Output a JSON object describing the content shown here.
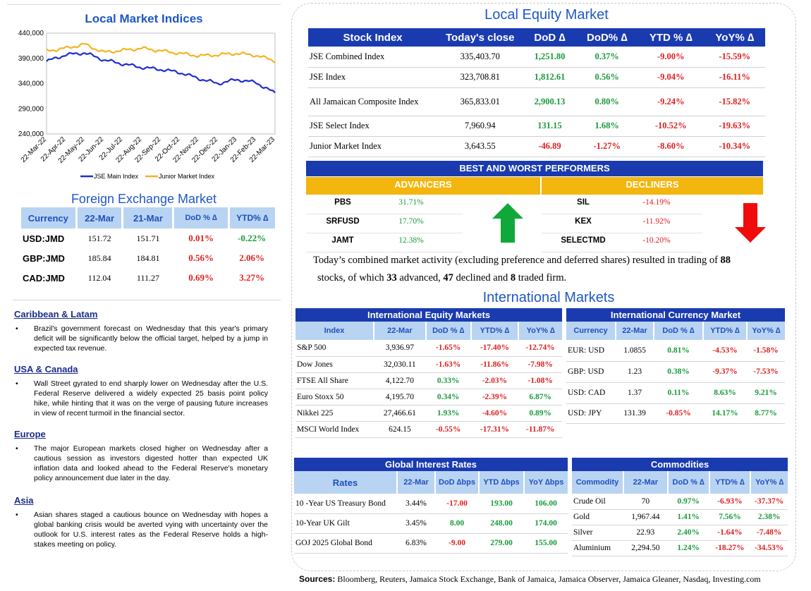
{
  "local_indices": {
    "title": "Local Market Indices",
    "y_ticks": [
      "440,000",
      "390,000",
      "340,000",
      "290,000",
      "240,000"
    ],
    "x_ticks": [
      "22-Mar-22",
      "22-Apr-22",
      "22-May-22",
      "22-Jun-22",
      "22-Jul-22",
      "22-Aug-22",
      "22-Sep-22",
      "22-Oct-22",
      "22-Nov-22",
      "22-Dec-22",
      "22-Jan-23",
      "22-Feb-23",
      "22-Mar-23"
    ],
    "legend": [
      "JSE Main Index",
      "Junior Market Index"
    ],
    "colors": {
      "main": "#1f2ecf",
      "junior": "#f2b51f"
    }
  },
  "chart_data": {
    "type": "line",
    "title": "Local Market Indices",
    "ylim": [
      240000,
      440000
    ],
    "categories": [
      "22-Mar-22",
      "22-Apr-22",
      "22-May-22",
      "22-Jun-22",
      "22-Jul-22",
      "22-Aug-22",
      "22-Sep-22",
      "22-Oct-22",
      "22-Nov-22",
      "22-Dec-22",
      "22-Jan-23",
      "22-Feb-23",
      "22-Mar-23"
    ],
    "series": [
      {
        "name": "JSE Main Index",
        "values": [
          384000,
          397000,
          401000,
          387000,
          379000,
          372000,
          368000,
          362000,
          350000,
          340000,
          348000,
          342000,
          321000
        ]
      },
      {
        "name": "Junior Market Index",
        "values": [
          405000,
          410000,
          418000,
          402000,
          406000,
          410000,
          405000,
          400000,
          395000,
          397000,
          400000,
          396000,
          385000
        ]
      }
    ]
  },
  "fx": {
    "title": "Foreign Exchange Market",
    "headers": [
      "Currency",
      "22-Mar",
      "21-Mar",
      "DoD % ∆",
      "YTD% ∆"
    ],
    "rows": [
      {
        "cur": "USD:JMD",
        "a": "151.72",
        "b": "151.71",
        "dod": "0.01%",
        "ytd": "-0.22%",
        "dod_pos": false,
        "ytd_pos": true
      },
      {
        "cur": "GBP:JMD",
        "a": "185.84",
        "b": "184.81",
        "dod": "0.56%",
        "ytd": "2.06%",
        "dod_pos": false,
        "ytd_pos": false
      },
      {
        "cur": "CAD:JMD",
        "a": "112.04",
        "b": "111.27",
        "dod": "0.69%",
        "ytd": "3.27%",
        "dod_pos": false,
        "ytd_pos": false
      }
    ]
  },
  "news": [
    {
      "head": "Caribbean & Latam",
      "body": "Brazil's government forecast on Wednesday that this year's primary deficit will be significantly below the official target, helped by a jump in expected tax revenue."
    },
    {
      "head": "USA & Canada",
      "body": "Wall Street gyrated to end sharply lower on Wednesday after the U.S. Federal Reserve delivered a widely expected 25 basis point policy hike, while hinting that it was on the verge of pausing future increases in view of recent turmoil in the financial sector."
    },
    {
      "head": "Europe",
      "body": "The major European markets closed higher on Wednesday after a cautious session as investors digested hotter than expected UK inflation data and looked ahead to the Federal Reserve's monetary policy announcement due later in the day."
    },
    {
      "head": "Asia",
      "body": "Asian shares staged a cautious bounce on Wednesday with hopes a global banking crisis would be averted vying with uncertainty over the outlook for U.S. interest rates as the Federal Reserve holds a high-stakes meeting on policy."
    }
  ],
  "equity": {
    "title": "Local Equity Market",
    "headers": [
      "Stock Index",
      "Today's close",
      "DoD ∆",
      "DoD% ∆",
      "YTD % ∆",
      "YoY% ∆"
    ],
    "rows": [
      {
        "name": "JSE Combined Index",
        "close": "335,403.70",
        "dod": "1,251.80",
        "dodp": "0.37%",
        "ytd": "-9.00%",
        "yoy": "-15.59%",
        "up": true
      },
      {
        "name": "JSE Index",
        "close": "323,708.81",
        "dod": "1,812.61",
        "dodp": "0.56%",
        "ytd": "-9.04%",
        "yoy": "-16.11%",
        "up": true
      },
      {
        "name": "All Jamaican Composite Index",
        "close": "365,833.01",
        "dod": "2,900.13",
        "dodp": "0.80%",
        "ytd": "-9.24%",
        "yoy": "-15.82%",
        "up": true
      },
      {
        "name": "JSE Select Index",
        "close": "7,960.94",
        "dod": "131.15",
        "dodp": "1.68%",
        "ytd": "-10.52%",
        "yoy": "-19.63%",
        "up": true
      },
      {
        "name": "Junior Market Index",
        "close": "3,643.55",
        "dod": "-46.89",
        "dodp": "-1.27%",
        "ytd": "-8.60%",
        "yoy": "-10.34%",
        "up": false
      }
    ]
  },
  "performers": {
    "title": "BEST AND WORST PERFORMERS",
    "adv_label": "ADVANCERS",
    "dec_label": "DECLINERS",
    "advancers": [
      {
        "t": "PBS",
        "v": "31.71%"
      },
      {
        "t": "SRFUSD",
        "v": "17.70%"
      },
      {
        "t": "JAMT",
        "v": "12.38%"
      }
    ],
    "decliners": [
      {
        "t": "SIL",
        "v": "-14.19%"
      },
      {
        "t": "KEX",
        "v": "-11.92%"
      },
      {
        "t": "SELECTMD",
        "v": "-10.20%"
      }
    ]
  },
  "summary": {
    "p1": "Today’s combined market activity (excluding preference and deferred shares) resulted in trading of ",
    "n1": "88",
    "p2": "stocks, of which ",
    "n2": "33",
    "p3": " advanced, ",
    "n3": "47",
    "p4": " declined and ",
    "n4": "8",
    "p5": " traded firm."
  },
  "intl": {
    "title": "International Markets",
    "eq_title": "International Equity Markets",
    "eq_headers": [
      "Index",
      "22-Mar",
      "DoD % ∆",
      "YTD% ∆",
      "YoY% ∆"
    ],
    "eq_rows": [
      {
        "n": "S&P 500",
        "v": "3,936.97",
        "d": "-1.65%",
        "y": "-17.40%",
        "yy": "-12.74%",
        "dp": false,
        "yp": false,
        "yyp": false
      },
      {
        "n": "Dow Jones",
        "v": "32,030.11",
        "d": "-1.63%",
        "y": "-11.86%",
        "yy": "-7.98%",
        "dp": false,
        "yp": false,
        "yyp": false
      },
      {
        "n": "FTSE All Share",
        "v": "4,122.70",
        "d": "0.33%",
        "y": "-2.03%",
        "yy": "-1.08%",
        "dp": true,
        "yp": false,
        "yyp": false
      },
      {
        "n": "Euro Stoxx 50",
        "v": "4,195.70",
        "d": "0.34%",
        "y": "-2.39%",
        "yy": "6.87%",
        "dp": true,
        "yp": false,
        "yyp": true
      },
      {
        "n": "Nikkei 225",
        "v": "27,466.61",
        "d": "1.93%",
        "y": "-4.60%",
        "yy": "0.89%",
        "dp": true,
        "yp": false,
        "yyp": true
      },
      {
        "n": "MSCI World Index",
        "v": "624.15",
        "d": "-0.55%",
        "y": "-17.31%",
        "yy": "-11.87%",
        "dp": false,
        "yp": false,
        "yyp": false
      }
    ],
    "cur_title": "International Currency Market",
    "cur_headers": [
      "Currency",
      "22-Mar",
      "DoD % ∆",
      "YTD% ∆",
      "YoY% ∆"
    ],
    "cur_rows": [
      {
        "n": "EUR: USD",
        "v": "1.0855",
        "d": "0.81%",
        "y": "-4.53%",
        "yy": "-1.58%",
        "dp": true,
        "yp": false,
        "yyp": false
      },
      {
        "n": "GBP: USD",
        "v": "1.23",
        "d": "0.38%",
        "y": "-9.37%",
        "yy": "-7.53%",
        "dp": true,
        "yp": false,
        "yyp": false
      },
      {
        "n": "USD: CAD",
        "v": "1.37",
        "d": "0.11%",
        "y": "8.63%",
        "yy": "9.21%",
        "dp": true,
        "yp": true,
        "yyp": true
      },
      {
        "n": "USD: JPY",
        "v": "131.39",
        "d": "-0.85%",
        "y": "14.17%",
        "yy": "8.77%",
        "dp": false,
        "yp": true,
        "yyp": true
      }
    ],
    "rates_title": "Global Interest Rates",
    "rates_headers": [
      "Rates",
      "22-Mar",
      "DoD ∆bps",
      "YTD ∆bps",
      "YoY ∆bps"
    ],
    "rates_rows": [
      {
        "n": "10 -Year US Treasury Bond",
        "v": "3.44%",
        "d": "-17.00",
        "y": "193.00",
        "yy": "106.00",
        "dp": false
      },
      {
        "n": "10-Year UK Gilt",
        "v": "3.45%",
        "d": "8.00",
        "y": "248.00",
        "yy": "174.00",
        "dp": true
      },
      {
        "n": "GOJ 2025 Global Bond",
        "v": "6.83%",
        "d": "-9.00",
        "y": "279.00",
        "yy": "155.00",
        "dp": false
      }
    ],
    "com_title": "Commodities",
    "com_headers": [
      "Commodity",
      "22-Mar",
      "DoD % ∆",
      "YTD% ∆",
      "YoY% ∆"
    ],
    "com_rows": [
      {
        "n": "Crude Oil",
        "v": "70",
        "d": "0.97%",
        "y": "-6.93%",
        "yy": "-37.37%",
        "dp": true,
        "yp": false,
        "yyp": false
      },
      {
        "n": "Gold",
        "v": "1,967.44",
        "d": "1.41%",
        "y": "7.56%",
        "yy": "2.38%",
        "dp": true,
        "yp": true,
        "yyp": true
      },
      {
        "n": "Silver",
        "v": "22.93",
        "d": "2.40%",
        "y": "-1.64%",
        "yy": "-7.48%",
        "dp": true,
        "yp": false,
        "yyp": false
      },
      {
        "n": "Aluminium",
        "v": "2,294.50",
        "d": "1.24%",
        "y": "-18.27%",
        "yy": "-34.53%",
        "dp": true,
        "yp": false,
        "yyp": false
      }
    ]
  },
  "sources": {
    "label": "Sources:",
    "text": " Bloomberg, Reuters, Jamaica Stock Exchange, Bank of Jamaica, Jamaica Observer, Jamaica Gleaner, Nasdaq, Investing.com"
  }
}
